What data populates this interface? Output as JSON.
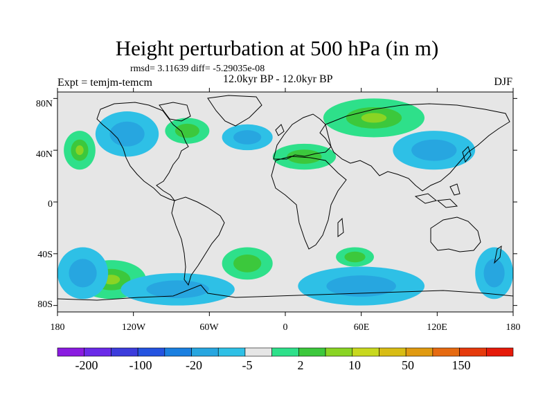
{
  "title": "Height perturbation at 500 hPa (in m)",
  "stats_line": "rmsd= 3.11639 diff= -5.29035e-08",
  "experiment": "Expt = temjm-temcm",
  "period": "12.0kyr BP - 12.0kyr BP",
  "season": "DJF",
  "lat_ticks": [
    "80N",
    "40N",
    "0",
    "40S",
    "80S"
  ],
  "lon_ticks": [
    "180",
    "120W",
    "60W",
    "0",
    "60E",
    "120E",
    "180"
  ],
  "colorbar": {
    "labels": [
      "-200",
      "-100",
      "-20",
      "-5",
      "2",
      "10",
      "50",
      "150"
    ],
    "colors": [
      "#8a1be0",
      "#6a2ae8",
      "#3c3cdc",
      "#2453e0",
      "#1a7fe0",
      "#27a6e0",
      "#2ec0e6",
      "#e6e6e6",
      "#2ee08a",
      "#3cc83c",
      "#8ad424",
      "#c8d81e",
      "#d8bc14",
      "#e09a10",
      "#e66a10",
      "#e63a0c",
      "#e61a0a"
    ]
  },
  "chart_data": {
    "type": "heatmap",
    "title": "Height perturbation at 500 hPa (in m)",
    "subtitle": "rmsd= 3.11639 diff= -5.29035e-08",
    "xlabel": "",
    "ylabel": "",
    "xlim": [
      -180,
      180
    ],
    "ylim": [
      -90,
      90
    ],
    "contour_levels": [
      -200,
      -100,
      -20,
      -5,
      2,
      10,
      50,
      150
    ],
    "regions": [
      {
        "sign": "positive",
        "value": 10,
        "lon": [
          -175,
          -150
        ],
        "lat": [
          25,
          55
        ]
      },
      {
        "sign": "positive",
        "value": 5,
        "lon": [
          -95,
          -60
        ],
        "lat": [
          45,
          65
        ]
      },
      {
        "sign": "positive",
        "value": 10,
        "lon": [
          30,
          110
        ],
        "lat": [
          50,
          80
        ]
      },
      {
        "sign": "positive",
        "value": 5,
        "lon": [
          -10,
          40
        ],
        "lat": [
          25,
          45
        ]
      },
      {
        "sign": "positive",
        "value": 10,
        "lon": [
          -165,
          -110
        ],
        "lat": [
          -75,
          -45
        ]
      },
      {
        "sign": "positive",
        "value": 5,
        "lon": [
          -50,
          -10
        ],
        "lat": [
          -60,
          -35
        ]
      },
      {
        "sign": "positive",
        "value": 5,
        "lon": [
          40,
          70
        ],
        "lat": [
          -50,
          -35
        ]
      },
      {
        "sign": "negative",
        "value": -5,
        "lon": [
          -150,
          -100
        ],
        "lat": [
          35,
          70
        ]
      },
      {
        "sign": "negative",
        "value": -5,
        "lon": [
          -50,
          -10
        ],
        "lat": [
          40,
          60
        ]
      },
      {
        "sign": "negative",
        "value": -5,
        "lon": [
          85,
          150
        ],
        "lat": [
          25,
          55
        ]
      },
      {
        "sign": "negative",
        "value": -5,
        "lon": [
          -180,
          -140
        ],
        "lat": [
          -75,
          -35
        ]
      },
      {
        "sign": "negative",
        "value": -5,
        "lon": [
          -130,
          -40
        ],
        "lat": [
          -80,
          -55
        ]
      },
      {
        "sign": "negative",
        "value": -5,
        "lon": [
          10,
          110
        ],
        "lat": [
          -80,
          -50
        ]
      },
      {
        "sign": "negative",
        "value": -5,
        "lon": [
          150,
          180
        ],
        "lat": [
          -75,
          -35
        ]
      }
    ]
  }
}
